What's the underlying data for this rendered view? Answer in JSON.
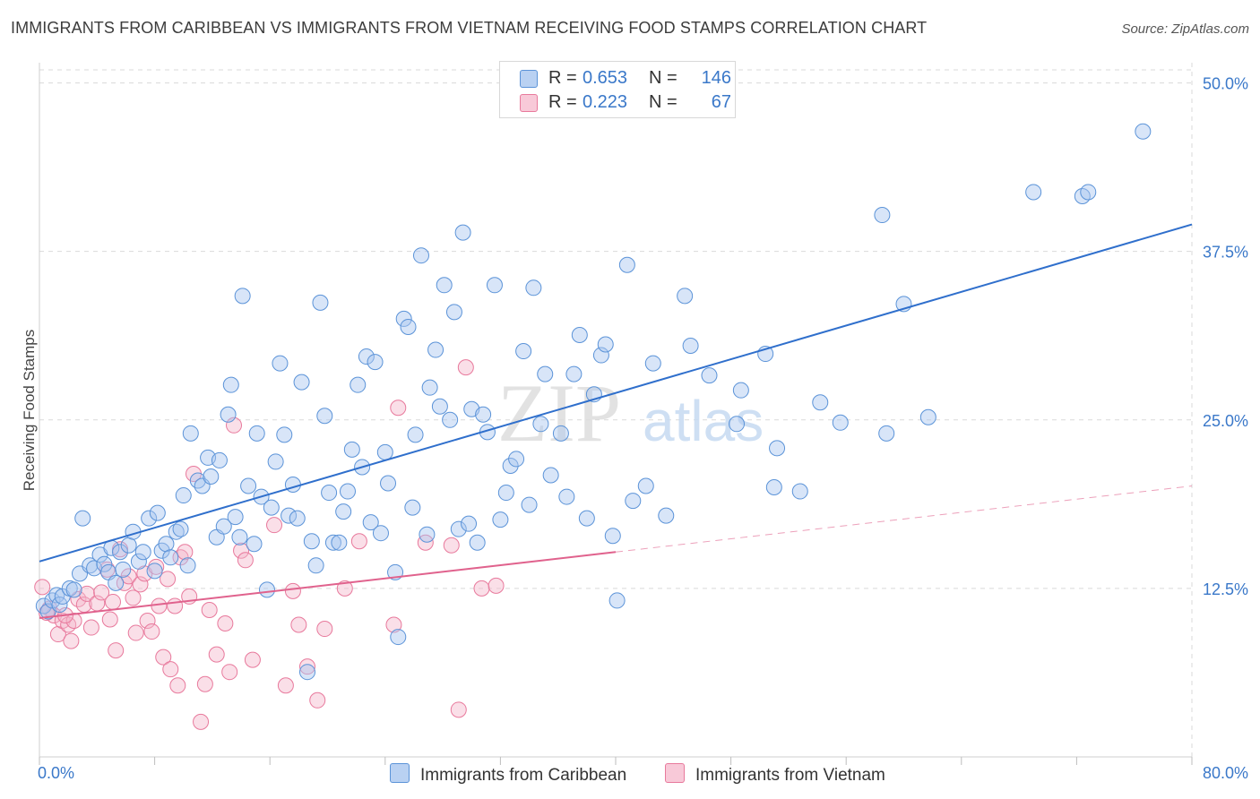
{
  "title": "IMMIGRANTS FROM CARIBBEAN VS IMMIGRANTS FROM VIETNAM RECEIVING FOOD STAMPS CORRELATION CHART",
  "source": "Source: ZipAtlas.com",
  "watermark": {
    "zip": "ZIP",
    "atlas": "atlas"
  },
  "legend": {
    "rows": [
      {
        "r_label": "R =",
        "r_value": "0.653",
        "n_label": "N =",
        "n_value": "146"
      },
      {
        "r_label": "R =",
        "r_value": "0.223",
        "n_label": "N =",
        "n_value": "67"
      }
    ]
  },
  "colors": {
    "caribbean_fill": "#a9c6ef",
    "caribbean_stroke": "#5b93d8",
    "caribbean_line": "#2f6fcc",
    "vietnam_fill": "#f5b8cb",
    "vietnam_stroke": "#e8799c",
    "vietnam_line": "#e0628d",
    "value_text": "#3a78c9",
    "grid": "#d9d9d9"
  },
  "chart_data": {
    "type": "scatter",
    "title": "IMMIGRANTS FROM CARIBBEAN VS IMMIGRANTS FROM VIETNAM RECEIVING FOOD STAMPS CORRELATION CHART",
    "xlabel": "",
    "ylabel": "Receiving Food Stamps",
    "xlim": [
      0,
      80
    ],
    "ylim": [
      0,
      51.5
    ],
    "x_tick_labels": [
      "0.0%",
      "80.0%"
    ],
    "y_ticks": [
      12.5,
      25.0,
      37.5,
      50.0
    ],
    "y_tick_labels": [
      "12.5%",
      "25.0%",
      "37.5%",
      "50.0%"
    ],
    "grid": true,
    "legend_position": "top-center",
    "series": [
      {
        "name": "Immigrants from Caribbean",
        "r": 0.653,
        "n": 146,
        "trend": {
          "x": [
            0,
            80
          ],
          "y": [
            14.5,
            39.5
          ]
        },
        "points": [
          [
            0.3,
            11.2
          ],
          [
            0.6,
            10.8
          ],
          [
            0.9,
            11.6
          ],
          [
            1.2,
            12.0
          ],
          [
            1.4,
            11.3
          ],
          [
            1.6,
            11.9
          ],
          [
            2.1,
            12.5
          ],
          [
            2.4,
            12.4
          ],
          [
            2.8,
            13.6
          ],
          [
            3.0,
            17.7
          ],
          [
            3.5,
            14.2
          ],
          [
            3.8,
            14.0
          ],
          [
            4.2,
            15.0
          ],
          [
            4.5,
            14.3
          ],
          [
            4.8,
            13.7
          ],
          [
            5.0,
            15.5
          ],
          [
            5.3,
            12.9
          ],
          [
            5.6,
            15.2
          ],
          [
            5.8,
            13.9
          ],
          [
            6.2,
            15.7
          ],
          [
            6.5,
            16.7
          ],
          [
            6.9,
            14.5
          ],
          [
            7.2,
            15.2
          ],
          [
            7.6,
            17.7
          ],
          [
            8.0,
            13.8
          ],
          [
            8.2,
            18.1
          ],
          [
            8.5,
            15.3
          ],
          [
            8.8,
            15.8
          ],
          [
            9.1,
            14.8
          ],
          [
            9.5,
            16.7
          ],
          [
            9.8,
            16.9
          ],
          [
            10.0,
            19.4
          ],
          [
            10.3,
            14.2
          ],
          [
            10.5,
            24.0
          ],
          [
            11.0,
            20.5
          ],
          [
            11.3,
            20.1
          ],
          [
            11.7,
            22.2
          ],
          [
            11.9,
            20.8
          ],
          [
            12.3,
            16.3
          ],
          [
            12.5,
            22.0
          ],
          [
            12.8,
            17.1
          ],
          [
            13.1,
            25.4
          ],
          [
            13.3,
            27.6
          ],
          [
            13.6,
            17.8
          ],
          [
            13.9,
            16.3
          ],
          [
            14.1,
            34.2
          ],
          [
            14.5,
            20.1
          ],
          [
            14.9,
            15.8
          ],
          [
            15.1,
            24.0
          ],
          [
            15.4,
            19.3
          ],
          [
            15.8,
            12.4
          ],
          [
            16.1,
            18.5
          ],
          [
            16.4,
            21.9
          ],
          [
            16.7,
            29.2
          ],
          [
            17.0,
            23.9
          ],
          [
            17.3,
            17.9
          ],
          [
            17.6,
            20.2
          ],
          [
            17.9,
            17.7
          ],
          [
            18.2,
            27.8
          ],
          [
            18.6,
            6.3
          ],
          [
            18.9,
            16.0
          ],
          [
            19.2,
            14.2
          ],
          [
            19.5,
            33.7
          ],
          [
            19.8,
            25.3
          ],
          [
            20.1,
            19.6
          ],
          [
            20.4,
            15.9
          ],
          [
            20.8,
            15.9
          ],
          [
            21.1,
            18.2
          ],
          [
            21.4,
            19.7
          ],
          [
            21.7,
            22.8
          ],
          [
            22.1,
            27.6
          ],
          [
            22.4,
            21.5
          ],
          [
            22.7,
            29.7
          ],
          [
            23.0,
            17.4
          ],
          [
            23.3,
            29.3
          ],
          [
            23.7,
            16.6
          ],
          [
            24.0,
            22.6
          ],
          [
            24.2,
            20.3
          ],
          [
            24.7,
            13.7
          ],
          [
            24.9,
            8.9
          ],
          [
            25.3,
            32.5
          ],
          [
            25.6,
            31.9
          ],
          [
            25.9,
            18.5
          ],
          [
            26.1,
            23.9
          ],
          [
            26.5,
            37.2
          ],
          [
            26.9,
            16.5
          ],
          [
            27.1,
            27.4
          ],
          [
            27.5,
            30.2
          ],
          [
            27.8,
            26.0
          ],
          [
            28.1,
            35.0
          ],
          [
            28.5,
            25.0
          ],
          [
            28.8,
            33.0
          ],
          [
            29.1,
            16.9
          ],
          [
            29.4,
            38.9
          ],
          [
            29.8,
            17.3
          ],
          [
            30.0,
            25.8
          ],
          [
            30.4,
            15.9
          ],
          [
            30.8,
            25.4
          ],
          [
            31.1,
            24.1
          ],
          [
            31.6,
            35.0
          ],
          [
            32.0,
            17.6
          ],
          [
            32.4,
            19.6
          ],
          [
            32.7,
            21.6
          ],
          [
            33.1,
            22.1
          ],
          [
            33.6,
            30.1
          ],
          [
            34.0,
            18.7
          ],
          [
            34.3,
            34.8
          ],
          [
            34.8,
            24.7
          ],
          [
            35.1,
            28.4
          ],
          [
            35.5,
            20.9
          ],
          [
            36.2,
            24.0
          ],
          [
            36.6,
            19.3
          ],
          [
            37.1,
            28.4
          ],
          [
            37.5,
            31.3
          ],
          [
            38.0,
            17.7
          ],
          [
            38.5,
            26.9
          ],
          [
            39.0,
            29.8
          ],
          [
            39.3,
            30.6
          ],
          [
            39.8,
            16.4
          ],
          [
            40.1,
            11.6
          ],
          [
            40.8,
            36.5
          ],
          [
            41.2,
            19.0
          ],
          [
            42.1,
            20.1
          ],
          [
            42.6,
            29.2
          ],
          [
            43.5,
            17.9
          ],
          [
            44.8,
            34.2
          ],
          [
            45.2,
            30.5
          ],
          [
            46.5,
            28.3
          ],
          [
            48.4,
            24.7
          ],
          [
            48.7,
            27.2
          ],
          [
            50.4,
            29.9
          ],
          [
            51.0,
            20.0
          ],
          [
            51.2,
            22.9
          ],
          [
            52.8,
            19.7
          ],
          [
            54.2,
            26.3
          ],
          [
            55.6,
            24.8
          ],
          [
            58.5,
            40.2
          ],
          [
            58.8,
            24.0
          ],
          [
            60.0,
            33.6
          ],
          [
            61.7,
            25.2
          ],
          [
            69.0,
            41.9
          ],
          [
            72.4,
            41.6
          ],
          [
            72.8,
            41.9
          ],
          [
            76.6,
            46.4
          ]
        ]
      },
      {
        "name": "Immigrants from Vietnam",
        "r": 0.223,
        "n": 67,
        "trend": {
          "x": [
            0,
            40
          ],
          "y": [
            10.3,
            15.2
          ]
        },
        "trend_dashed": {
          "x": [
            40,
            80
          ],
          "y": [
            15.2,
            20.1
          ]
        },
        "points": [
          [
            0.2,
            12.6
          ],
          [
            0.7,
            11.0
          ],
          [
            1.0,
            10.5
          ],
          [
            1.3,
            9.1
          ],
          [
            1.6,
            10.1
          ],
          [
            2.0,
            9.8
          ],
          [
            2.2,
            8.6
          ],
          [
            2.4,
            10.1
          ],
          [
            2.7,
            11.7
          ],
          [
            3.1,
            11.3
          ],
          [
            3.3,
            12.1
          ],
          [
            3.6,
            9.6
          ],
          [
            4.0,
            11.4
          ],
          [
            4.3,
            12.2
          ],
          [
            4.7,
            13.9
          ],
          [
            4.9,
            10.2
          ],
          [
            5.1,
            11.5
          ],
          [
            5.3,
            7.9
          ],
          [
            5.6,
            15.4
          ],
          [
            5.9,
            12.9
          ],
          [
            6.2,
            13.4
          ],
          [
            6.5,
            11.8
          ],
          [
            6.7,
            9.2
          ],
          [
            7.0,
            12.8
          ],
          [
            7.3,
            13.6
          ],
          [
            7.5,
            10.1
          ],
          [
            7.8,
            9.3
          ],
          [
            8.1,
            14.1
          ],
          [
            8.3,
            11.2
          ],
          [
            8.6,
            7.4
          ],
          [
            8.9,
            13.2
          ],
          [
            9.1,
            6.5
          ],
          [
            9.4,
            11.2
          ],
          [
            9.6,
            5.3
          ],
          [
            9.8,
            14.8
          ],
          [
            10.1,
            15.2
          ],
          [
            10.4,
            11.9
          ],
          [
            10.7,
            21.0
          ],
          [
            11.2,
            2.6
          ],
          [
            11.5,
            5.4
          ],
          [
            11.8,
            10.9
          ],
          [
            12.3,
            7.6
          ],
          [
            12.9,
            9.9
          ],
          [
            13.2,
            6.3
          ],
          [
            13.5,
            24.6
          ],
          [
            14.0,
            15.3
          ],
          [
            14.3,
            14.6
          ],
          [
            14.8,
            7.2
          ],
          [
            16.3,
            17.2
          ],
          [
            17.1,
            5.3
          ],
          [
            17.6,
            12.3
          ],
          [
            18.0,
            9.8
          ],
          [
            18.6,
            6.7
          ],
          [
            19.3,
            4.2
          ],
          [
            19.8,
            9.5
          ],
          [
            21.2,
            12.5
          ],
          [
            22.2,
            16.0
          ],
          [
            24.6,
            9.8
          ],
          [
            24.9,
            25.9
          ],
          [
            26.8,
            15.9
          ],
          [
            28.6,
            15.7
          ],
          [
            29.1,
            3.5
          ],
          [
            29.6,
            28.9
          ],
          [
            30.7,
            12.5
          ],
          [
            31.7,
            12.7
          ],
          [
            0.5,
            10.7
          ],
          [
            1.8,
            10.5
          ]
        ]
      }
    ]
  },
  "bottom_legend": [
    {
      "label": "Immigrants from Caribbean"
    },
    {
      "label": "Immigrants from Vietnam"
    }
  ]
}
